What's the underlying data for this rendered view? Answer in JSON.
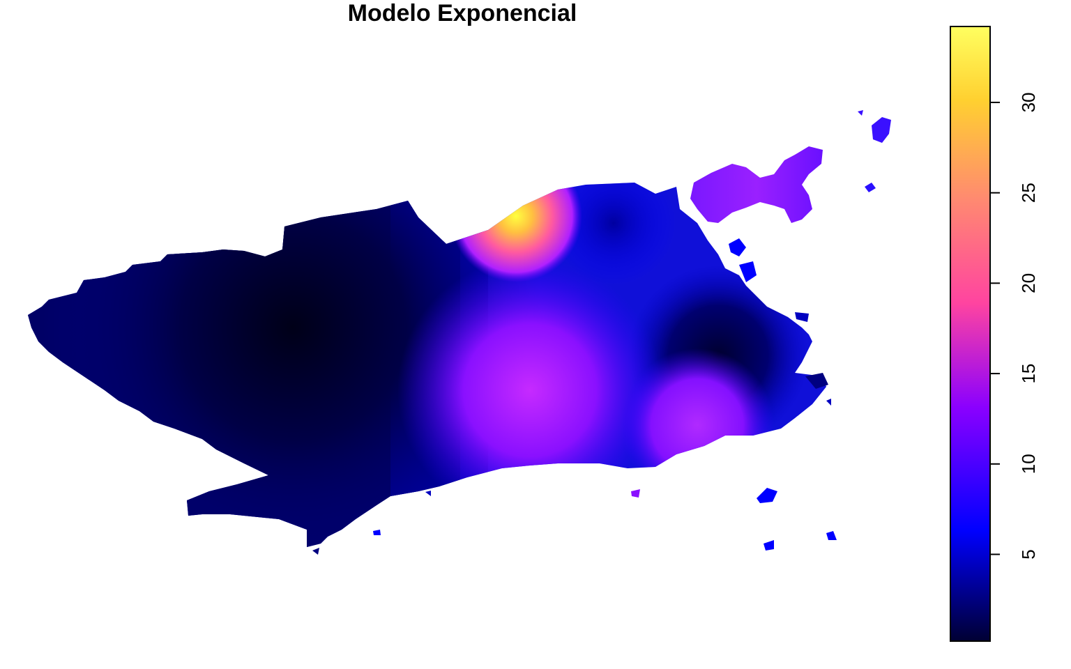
{
  "title": "Modelo Exponencial",
  "legend": {
    "range": [
      0.2,
      34.2
    ],
    "ticks": [
      {
        "value": 5,
        "label": "5"
      },
      {
        "value": 10,
        "label": "10"
      },
      {
        "value": 15,
        "label": "15"
      },
      {
        "value": 20,
        "label": "20"
      },
      {
        "value": 25,
        "label": "25"
      },
      {
        "value": 30,
        "label": "30"
      }
    ],
    "colormap": [
      "#000033",
      "#0000ff",
      "#8a00ff",
      "#ff44a0",
      "#ff8a70",
      "#ffd030",
      "#ffff60"
    ]
  },
  "map": {
    "region": "Rio de Janeiro municipality",
    "surface": "kriging prediction (exponential variogram)",
    "hotspots": [
      {
        "name": "north-peak",
        "value": 34,
        "color": "#ffea30"
      },
      {
        "name": "south-central-peak",
        "value": 16,
        "color": "#c020ff"
      },
      {
        "name": "south-east-peak",
        "value": 15,
        "color": "#b01cff"
      },
      {
        "name": "island-peak",
        "value": 14,
        "color": "#9a20ff"
      },
      {
        "name": "west-low",
        "value": 1,
        "color": "#000020"
      }
    ]
  }
}
